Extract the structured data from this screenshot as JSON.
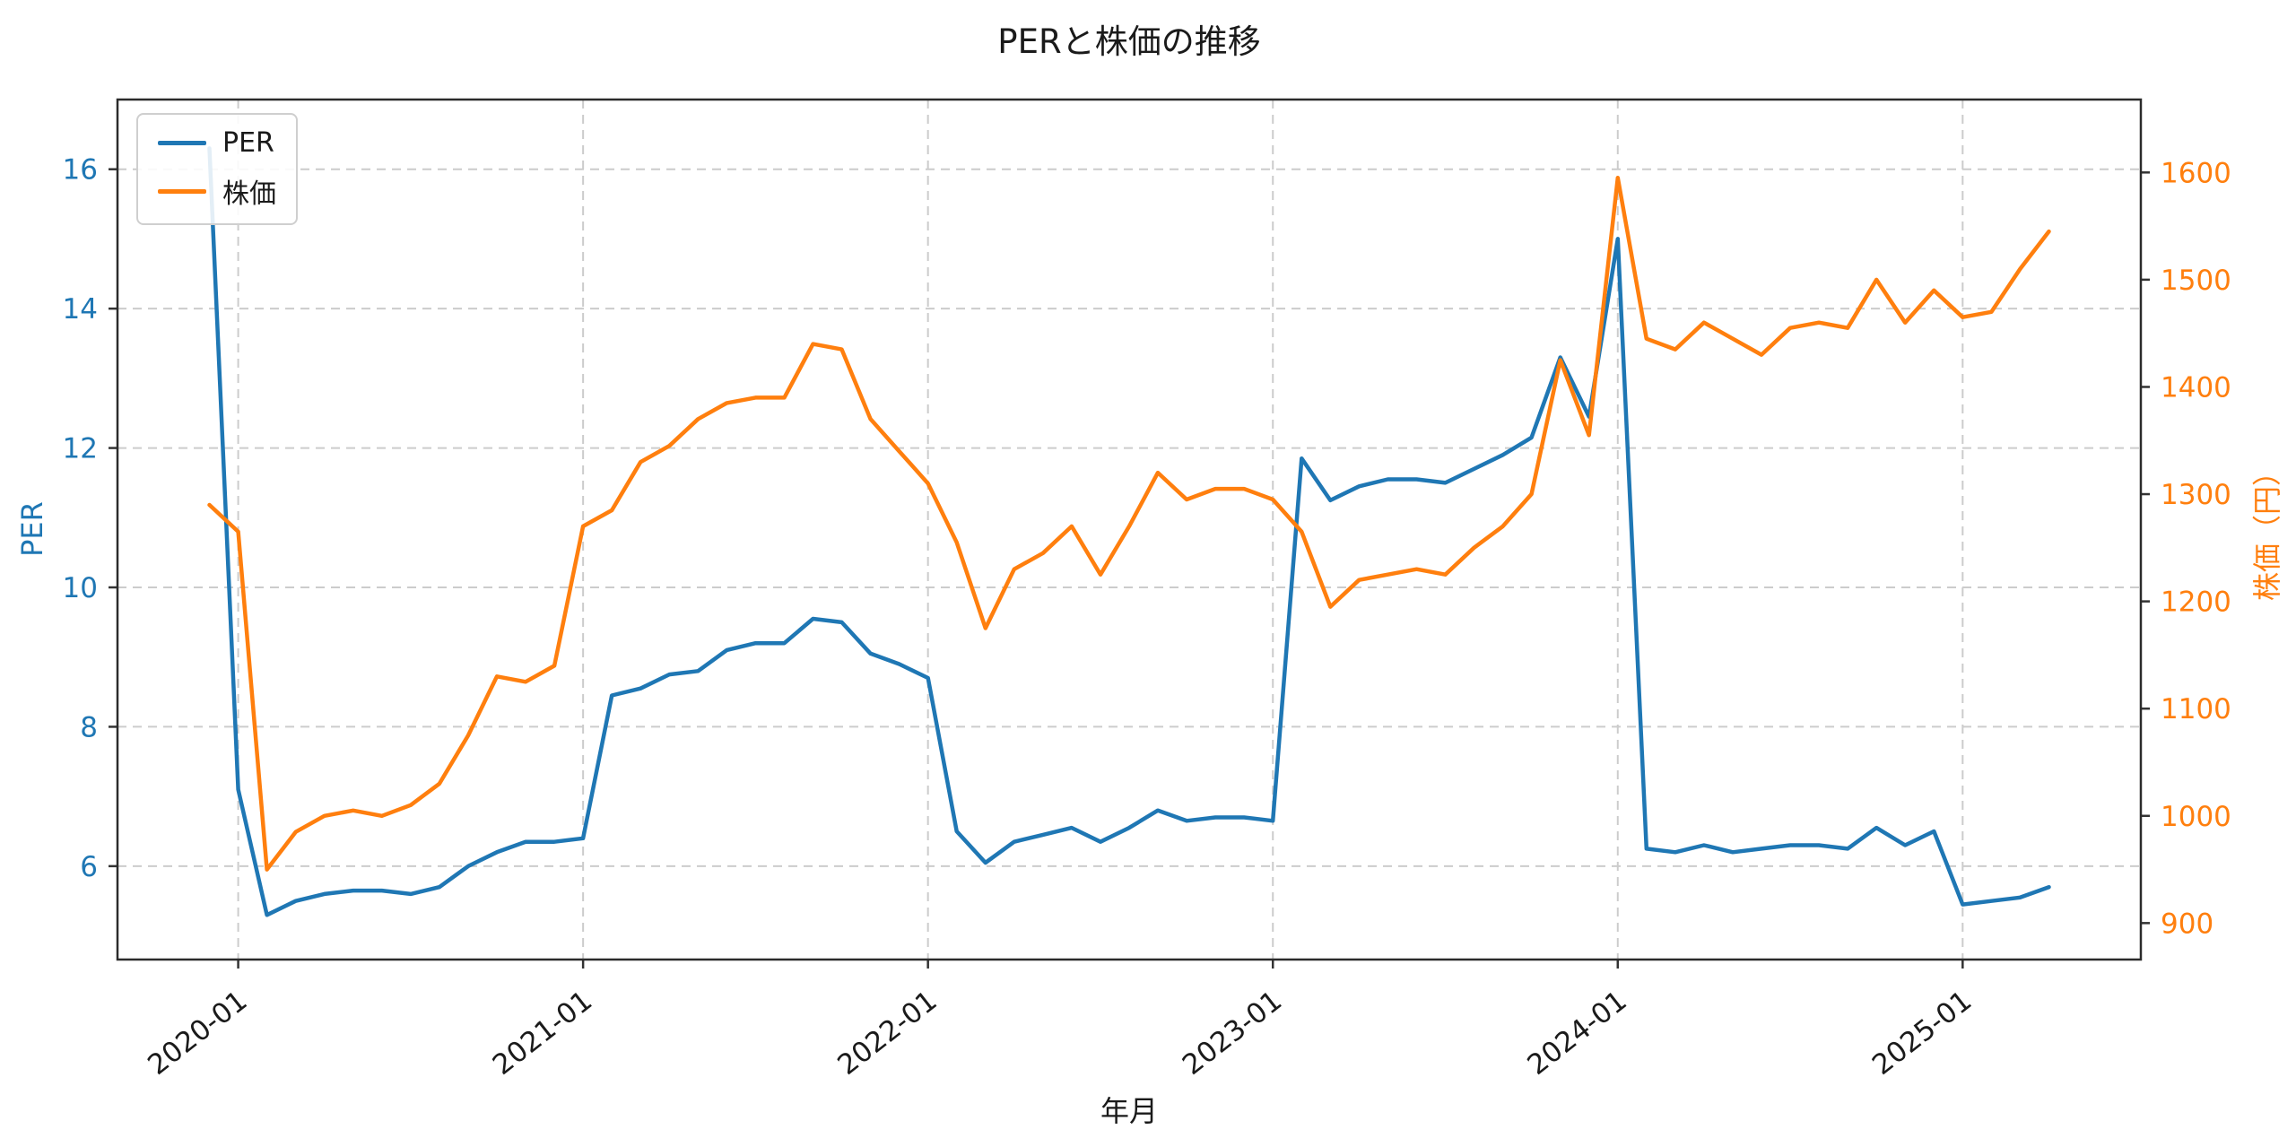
{
  "figure": {
    "title": "PERと株価の推移",
    "xlabel": "年月",
    "ylabel_left": "PER",
    "ylabel_right": "株価（円）"
  },
  "chart_data": {
    "type": "line",
    "title": "PERと株価の推移",
    "xlabel": "年月",
    "ylabel_left": "PER",
    "ylabel_right": "株価（円）",
    "grid": {
      "on": true,
      "style": "dashed",
      "color": "#cccccc"
    },
    "legend": {
      "position": "upper-left",
      "entries": [
        "PER",
        "株価"
      ]
    },
    "x": [
      "2019-12",
      "2020-01",
      "2020-02",
      "2020-03",
      "2020-04",
      "2020-05",
      "2020-06",
      "2020-07",
      "2020-08",
      "2020-09",
      "2020-10",
      "2020-11",
      "2020-12",
      "2021-01",
      "2021-02",
      "2021-03",
      "2021-04",
      "2021-05",
      "2021-06",
      "2021-07",
      "2021-08",
      "2021-09",
      "2021-10",
      "2021-11",
      "2021-12",
      "2022-01",
      "2022-02",
      "2022-03",
      "2022-04",
      "2022-05",
      "2022-06",
      "2022-07",
      "2022-08",
      "2022-09",
      "2022-10",
      "2022-11",
      "2022-12",
      "2023-01",
      "2023-02",
      "2023-03",
      "2023-04",
      "2023-05",
      "2023-06",
      "2023-07",
      "2023-08",
      "2023-09",
      "2023-10",
      "2023-11",
      "2023-12",
      "2024-01",
      "2024-02",
      "2024-03",
      "2024-04",
      "2024-05",
      "2024-06",
      "2024-07",
      "2024-08",
      "2024-09",
      "2024-10",
      "2024-11",
      "2024-12",
      "2025-01",
      "2025-02",
      "2025-03",
      "2025-04"
    ],
    "series": [
      {
        "name": "PER",
        "axis": "left",
        "color": "#1f77b4",
        "values": [
          16.3,
          7.1,
          5.3,
          5.5,
          5.6,
          5.65,
          5.65,
          5.6,
          5.7,
          6.0,
          6.2,
          6.35,
          6.35,
          6.4,
          8.45,
          8.55,
          8.75,
          8.8,
          9.1,
          9.2,
          9.2,
          9.55,
          9.5,
          9.05,
          8.9,
          8.7,
          6.5,
          6.05,
          6.35,
          6.45,
          6.55,
          6.35,
          6.55,
          6.8,
          6.65,
          6.7,
          6.7,
          6.65,
          11.85,
          11.25,
          11.45,
          11.55,
          11.55,
          11.5,
          11.7,
          11.9,
          12.15,
          13.3,
          12.45,
          15.0,
          6.25,
          6.2,
          6.3,
          6.2,
          6.25,
          6.3,
          6.3,
          6.25,
          6.55,
          6.3,
          6.5,
          5.45,
          5.5,
          5.55,
          5.7
        ]
      },
      {
        "name": "株価",
        "axis": "right",
        "color": "#ff7f0e",
        "values": [
          1290,
          1265,
          950,
          985,
          1000,
          1005,
          1000,
          1010,
          1030,
          1075,
          1130,
          1125,
          1140,
          1270,
          1285,
          1330,
          1345,
          1370,
          1385,
          1390,
          1390,
          1440,
          1435,
          1370,
          1340,
          1310,
          1255,
          1175,
          1230,
          1245,
          1270,
          1225,
          1270,
          1320,
          1295,
          1305,
          1305,
          1295,
          1265,
          1195,
          1220,
          1225,
          1230,
          1225,
          1250,
          1270,
          1300,
          1425,
          1355,
          1595,
          1445,
          1435,
          1460,
          1445,
          1430,
          1455,
          1460,
          1455,
          1500,
          1460,
          1490,
          1465,
          1470,
          1510,
          1545
        ]
      }
    ],
    "axes": {
      "left": {
        "lim": [
          4.66,
          17.0
        ],
        "ticks": [
          6,
          8,
          10,
          12,
          14,
          16
        ],
        "color": "#1f77b4"
      },
      "right": {
        "lim": [
          866,
          1668
        ],
        "ticks": [
          900,
          1000,
          1100,
          1200,
          1300,
          1400,
          1500,
          1600
        ],
        "color": "#ff7f0e"
      },
      "x": {
        "tick_indices": [
          1,
          13,
          25,
          37,
          49,
          61
        ],
        "tick_labels": [
          "2020-01",
          "2021-01",
          "2022-01",
          "2023-01",
          "2024-01",
          "2025-01"
        ],
        "margin_months": 3.2,
        "label_rotation_deg": -38
      }
    }
  }
}
